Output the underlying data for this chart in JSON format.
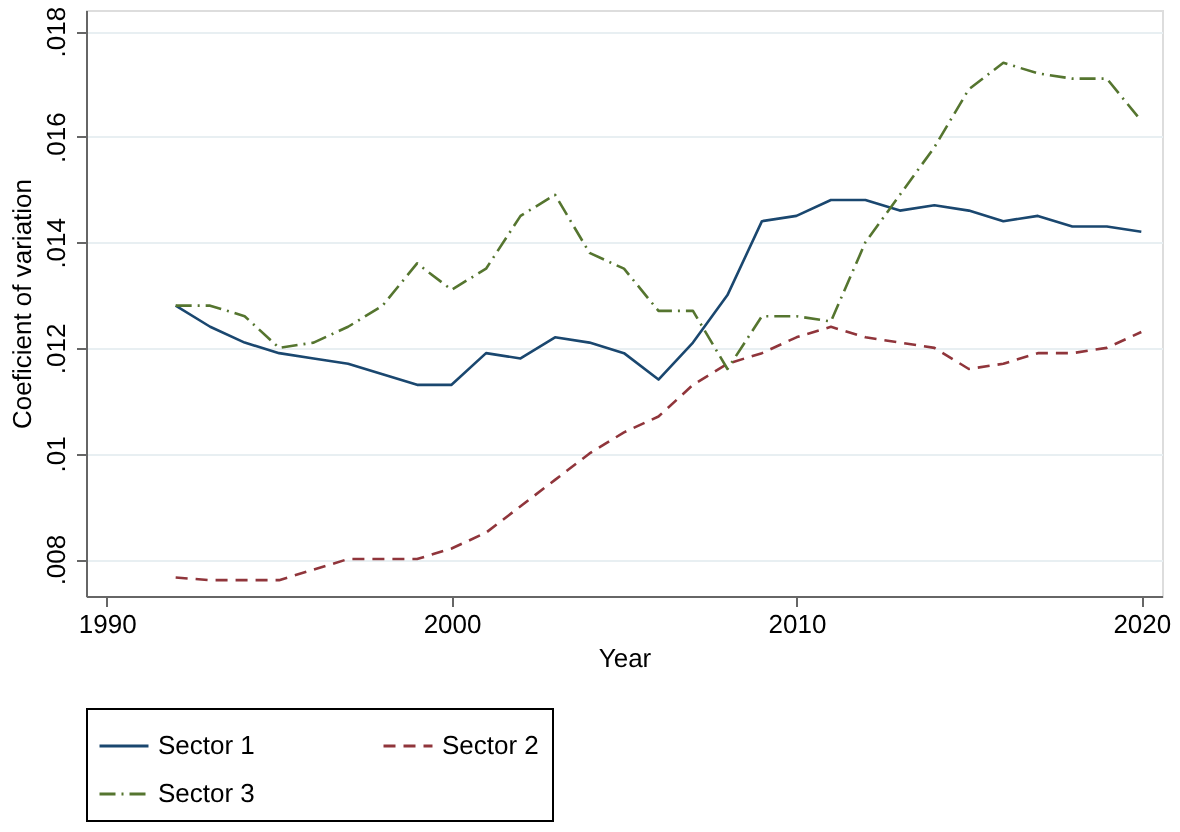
{
  "chart_data": {
    "type": "line",
    "xlabel": "Year",
    "ylabel": "Coeficient of variation",
    "x": [
      1992,
      1993,
      1994,
      1995,
      1996,
      1997,
      1998,
      1999,
      2000,
      2001,
      2002,
      2003,
      2004,
      2005,
      2006,
      2007,
      2008,
      2009,
      2010,
      2011,
      2012,
      2013,
      2014,
      2015,
      2016,
      2017,
      2018,
      2019,
      2020
    ],
    "series": [
      {
        "name": "Sector 1",
        "color": "#1a476f",
        "line_style": "solid",
        "values": [
          0.0128,
          0.0124,
          0.0121,
          0.0119,
          0.0118,
          0.0117,
          0.0115,
          0.0113,
          0.0113,
          0.0119,
          0.0118,
          0.0122,
          0.0121,
          0.0119,
          0.0114,
          0.0121,
          0.013,
          0.0144,
          0.0145,
          0.0148,
          0.0148,
          0.0146,
          0.0147,
          0.0146,
          0.0144,
          0.0145,
          0.0143,
          0.0143,
          0.0142
        ]
      },
      {
        "name": "Sector 2",
        "color": "#90353b",
        "line_style": "dashed",
        "values": [
          0.00765,
          0.0076,
          0.0076,
          0.0076,
          0.0078,
          0.008,
          0.008,
          0.008,
          0.0082,
          0.0085,
          0.009,
          0.0095,
          0.01,
          0.0104,
          0.0107,
          0.0113,
          0.0117,
          0.0119,
          0.0122,
          0.0124,
          0.0122,
          0.0121,
          0.012,
          0.0116,
          0.0117,
          0.0119,
          0.0119,
          0.012,
          0.0123
        ]
      },
      {
        "name": "Sector 3",
        "color": "#55752f",
        "line_style": "dashdot",
        "values": [
          0.0128,
          0.0128,
          0.0126,
          0.012,
          0.0121,
          0.0124,
          0.0128,
          0.0136,
          0.0131,
          0.0135,
          0.0145,
          0.0149,
          0.0138,
          0.0135,
          0.0127,
          0.0127,
          0.0116,
          0.0126,
          0.0126,
          0.0125,
          0.014,
          0.0149,
          0.0158,
          0.0169,
          0.0174,
          0.0172,
          0.0171,
          0.0171,
          0.0163
        ]
      }
    ],
    "xlim": [
      1989.4,
      2020.6
    ],
    "xticks": [
      1990,
      2000,
      2010,
      2020
    ],
    "ylim": [
      0.0073,
      0.0184
    ],
    "yticks": [
      {
        "value": 0.008,
        "label": ".008"
      },
      {
        "value": 0.01,
        "label": ".01"
      },
      {
        "value": 0.012,
        "label": ".012"
      },
      {
        "value": 0.014,
        "label": ".014"
      },
      {
        "value": 0.016,
        "label": ".016"
      },
      {
        "value": 0.018,
        "label": ".018"
      }
    ],
    "grid": "y",
    "legend": "bottom",
    "marker": "none"
  }
}
